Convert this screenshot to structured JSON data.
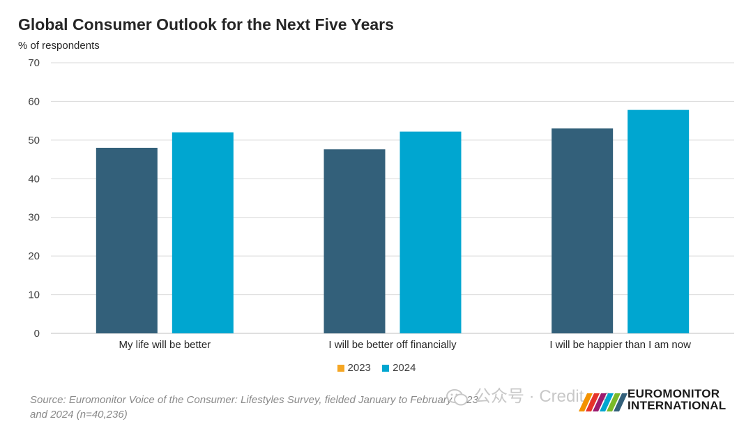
{
  "header": {
    "title": "Global Consumer Outlook for the Next Five Years",
    "subtitle": "% of respondents"
  },
  "colors": {
    "series_2023": "#33607a",
    "series_2024": "#00a6d0",
    "legend_2023": "#f5a623"
  },
  "legend": [
    {
      "label": "2023",
      "color": "#f5a623"
    },
    {
      "label": "2024",
      "color": "#00a6d0"
    }
  ],
  "footer": {
    "source_line1": "Source: Euromonitor Voice of the Consumer: Lifestyles Survey, fielded January to February 2023",
    "source_line2": "and 2024 (n=40,236)",
    "watermark": "公众号 · Credit... e",
    "logo_line1": "EUROMONITOR",
    "logo_line2": "INTERNATIONAL"
  },
  "chart_data": {
    "type": "bar",
    "title": "Global Consumer Outlook for the Next Five Years",
    "ylabel": "% of respondents",
    "ylim": [
      0,
      70
    ],
    "yticks": [
      0,
      10,
      20,
      30,
      40,
      50,
      60,
      70
    ],
    "grid": true,
    "legend_position": "bottom",
    "categories": [
      "My life will be better",
      "I will be better off financially",
      "I will be happier than I am now"
    ],
    "series": [
      {
        "name": "2023",
        "color": "#33607a",
        "values": [
          48,
          47.6,
          53
        ]
      },
      {
        "name": "2024",
        "color": "#00a6d0",
        "values": [
          52,
          52.2,
          57.8
        ]
      }
    ]
  }
}
